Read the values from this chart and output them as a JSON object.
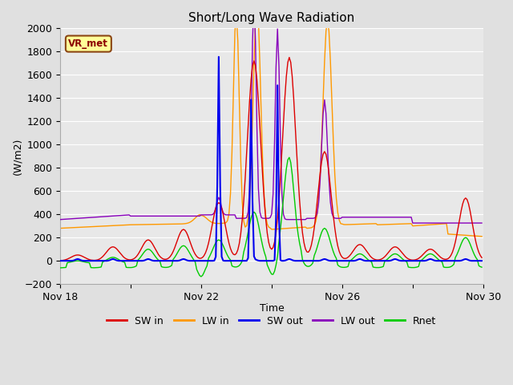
{
  "title": "Short/Long Wave Radiation",
  "ylabel": "(W/m2)",
  "xlabel": "Time",
  "ylim": [
    -200,
    2000
  ],
  "xlim": [
    0,
    288
  ],
  "ytick_positions": [
    -200,
    0,
    200,
    400,
    600,
    800,
    1000,
    1200,
    1400,
    1600,
    1800,
    2000
  ],
  "annotation_text": "VR_met",
  "bg_color": "#e0e0e0",
  "plot_bg_color": "#e8e8e8",
  "grid_color": "#ffffff",
  "colors": {
    "SW_in": "#dd0000",
    "LW_in": "#ff9900",
    "SW_out": "#0000ee",
    "LW_out": "#8800bb",
    "Rnet": "#00cc00"
  },
  "legend_labels": [
    "SW in",
    "LW in",
    "SW out",
    "LW out",
    "Rnet"
  ]
}
